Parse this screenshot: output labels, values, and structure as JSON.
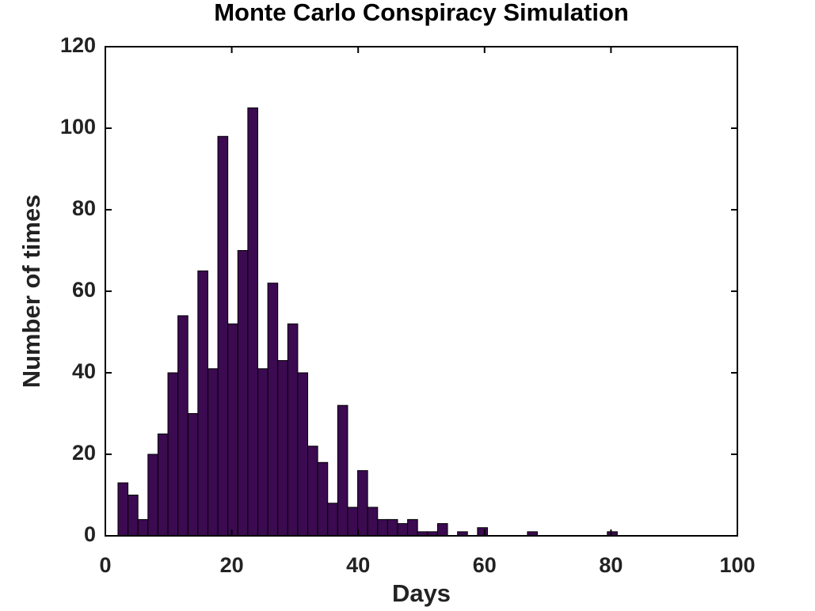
{
  "chart_data": {
    "type": "histogram",
    "title": "Monte Carlo Conspiracy Simulation",
    "x_label": "Days",
    "y_label": "Number of times",
    "bins": [
      2,
      3.58,
      5.16,
      6.74,
      8.32,
      9.9,
      11.48,
      13.06,
      14.64,
      16.22,
      17.8,
      19.38,
      20.96,
      22.54,
      24.12,
      25.7,
      27.28,
      28.86,
      30.44,
      32.02,
      33.6,
      35.18,
      36.76,
      38.34,
      39.92,
      41.5,
      43.08,
      44.66,
      46.24,
      47.82,
      49.4,
      50.98,
      52.56,
      54.14,
      55.72,
      57.3,
      58.88,
      60.46,
      62.04,
      63.62,
      65.2,
      66.78,
      68.36,
      69.94,
      71.52,
      73.1,
      74.68,
      76.26,
      77.84,
      79.42,
      81
    ],
    "values": [
      13,
      10,
      4,
      20,
      25,
      40,
      54,
      30,
      65,
      41,
      98,
      52,
      70,
      105,
      41,
      62,
      43,
      52,
      40,
      22,
      18,
      8,
      32,
      7,
      16,
      7,
      4,
      4,
      3,
      4,
      1,
      1,
      3,
      0,
      1,
      0,
      2,
      0,
      0,
      0,
      0,
      1,
      0,
      0,
      0,
      0,
      0,
      0,
      0,
      1
    ],
    "color": "#3b0a50",
    "xlim": [
      0,
      100
    ],
    "xticks": [
      0,
      20,
      40,
      60,
      80,
      100
    ],
    "ylim": [
      0,
      120
    ],
    "yticks": [
      0,
      20,
      40,
      60,
      80,
      100,
      120
    ]
  }
}
